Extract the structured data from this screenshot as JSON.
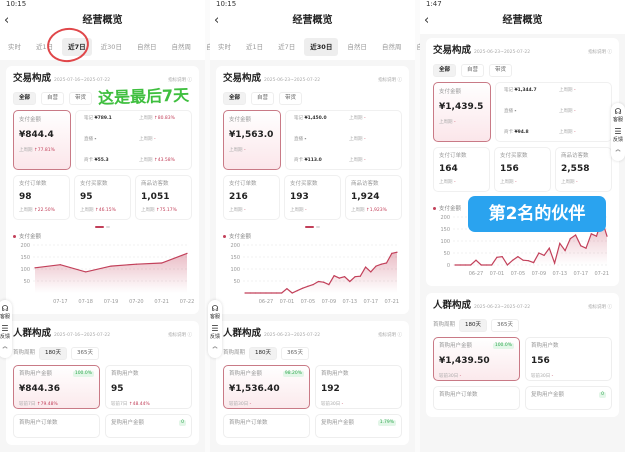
{
  "panels": [
    {
      "status_time": "10:15",
      "title": "经营概览",
      "tabs": [
        "实时",
        "近1日",
        "近7日",
        "近30日",
        "自然日",
        "自然周",
        "自然"
      ],
      "active_tab": 2,
      "trade": {
        "title": "交易构成",
        "date": "2025-07-16~2025-07-22",
        "help": "指标说明 ⓘ",
        "segments": [
          "全部",
          "自营",
          "带货"
        ],
        "pay": {
          "label": "支付金额",
          "value": "¥844.4",
          "cmp_label": "上周期",
          "cmp": "↑77.81%"
        },
        "details": [
          {
            "label": "笔记",
            "value": "¥789.1",
            "cmp_label": "上周期",
            "cmp": "↑80.83%"
          },
          {
            "label": "直播",
            "value": "-",
            "cmp_label": "上周期",
            "cmp": "-"
          },
          {
            "label": "商卡",
            "value": "¥55.3",
            "cmp_label": "上周期",
            "cmp": "↑43.58%"
          }
        ],
        "stats": [
          {
            "label": "支付订单数",
            "value": "98",
            "cmp_label": "上周期",
            "cmp": "↑22.50%"
          },
          {
            "label": "支付买家数",
            "value": "95",
            "cmp_label": "上周期",
            "cmp": "↑46.15%"
          },
          {
            "label": "商品访客数",
            "value": "1,051",
            "cmp_label": "上周期",
            "cmp": "↑75.17%"
          }
        ]
      },
      "chart_data": {
        "type": "area",
        "series": [
          {
            "name": "支付金额",
            "values": [
              105,
              118,
              88,
              112,
              120,
              125,
              165
            ]
          }
        ],
        "x": [
          "07-16",
          "07-17",
          "07-18",
          "07-19",
          "07-20",
          "07-21",
          "07-22"
        ],
        "xticks": [
          "07-17",
          "07-18",
          "07-19",
          "07-20",
          "07-21",
          "07-22"
        ],
        "yticks": [
          50,
          100,
          150,
          200
        ],
        "ylim": [
          0,
          200
        ]
      },
      "crowd": {
        "title": "人群构成",
        "date": "2025-07-16~2025-07-22",
        "help": "指标说明 ⓘ",
        "period_label": "首购周期",
        "periods": [
          "180天",
          "365天"
        ],
        "boxes": [
          {
            "label": "首购用户金额",
            "value": "¥844.36",
            "badge": "100.0%",
            "cmp_label": "较前7日",
            "cmp": "↑79.48%"
          },
          {
            "label": "首购用户数",
            "value": "95",
            "cmp_label": "较前7日",
            "cmp": "↑48.44%"
          }
        ],
        "next": [
          {
            "label": "首购用户订单数"
          },
          {
            "label": "复购用户金额",
            "badge": "0"
          }
        ]
      },
      "side": {
        "service": "客服",
        "feedback": "反馈"
      }
    },
    {
      "status_time": "10:15",
      "title": "经营概览",
      "tabs": [
        "实时",
        "近1日",
        "近7日",
        "近30日",
        "自然日",
        "自然周",
        "自然"
      ],
      "active_tab": 3,
      "trade": {
        "title": "交易构成",
        "date": "2025-06-23~2025-07-22",
        "help": "指标说明 ⓘ",
        "segments": [
          "全部",
          "自营",
          "带货"
        ],
        "pay": {
          "label": "支付金额",
          "value": "¥1,563.0",
          "cmp_label": "上周期",
          "cmp": "-"
        },
        "details": [
          {
            "label": "笔记",
            "value": "¥1,450.0",
            "cmp_label": "上周期",
            "cmp": "-"
          },
          {
            "label": "直播",
            "value": "-",
            "cmp_label": "上周期",
            "cmp": "-"
          },
          {
            "label": "商卡",
            "value": "¥113.0",
            "cmp_label": "上周期",
            "cmp": "-"
          }
        ],
        "stats": [
          {
            "label": "支付订单数",
            "value": "216",
            "cmp_label": "上周期",
            "cmp": "-"
          },
          {
            "label": "支付买家数",
            "value": "193",
            "cmp_label": "上周期",
            "cmp": "-"
          },
          {
            "label": "商品访客数",
            "value": "1,924",
            "cmp_label": "上周期",
            "cmp": "↑1,923%"
          }
        ]
      },
      "chart_data": {
        "type": "area",
        "series": [
          {
            "name": "支付金额",
            "values": [
              0,
              0,
              0,
              0,
              0,
              0,
              0,
              0,
              18,
              0,
              10,
              20,
              28,
              35,
              48,
              45,
              35,
              72,
              62,
              68,
              48,
              68,
              70,
              108,
              88,
              112,
              120,
              125,
              165,
              170
            ]
          }
        ],
        "x_start": "06-23",
        "x_end": "07-22",
        "xticks": [
          "06-27",
          "07-01",
          "07-05",
          "07-09",
          "07-13",
          "07-17",
          "07-21"
        ],
        "yticks": [
          50,
          100,
          150,
          200
        ],
        "ylim": [
          0,
          200
        ]
      },
      "crowd": {
        "title": "人群构成",
        "date": "2025-06-23~2025-07-22",
        "help": "指标说明 ⓘ",
        "period_label": "首购周期",
        "periods": [
          "180天",
          "365天"
        ],
        "boxes": [
          {
            "label": "首购用户金额",
            "value": "¥1,536.40",
            "badge": "98.20%",
            "cmp_label": "较前30日",
            "cmp": "-"
          },
          {
            "label": "首购用户数",
            "value": "192",
            "cmp_label": "较前30日",
            "cmp": "-"
          }
        ],
        "next": [
          {
            "label": "首购用户订单数"
          },
          {
            "label": "复购用户金额",
            "badge": "1.79%"
          }
        ]
      },
      "side": {
        "service": "客服",
        "feedback": "反馈"
      }
    },
    {
      "status_time": "1:47",
      "title": "经营概览",
      "trade": {
        "title": "交易构成",
        "date": "2025-06-23~2025-07-22",
        "help": "指标说明 ⓘ",
        "segments": [
          "全部",
          "自营",
          "带货"
        ],
        "pay": {
          "label": "支付金额",
          "value": "¥1,439.5",
          "cmp_label": "上周期",
          "cmp": "-"
        },
        "details": [
          {
            "label": "笔记",
            "value": "¥1,344.7",
            "cmp_label": "上周期",
            "cmp": "-"
          },
          {
            "label": "直播",
            "value": "-",
            "cmp_label": "上周期",
            "cmp": "-"
          },
          {
            "label": "商卡",
            "value": "¥94.8",
            "cmp_label": "上周期",
            "cmp": "-"
          }
        ],
        "stats": [
          {
            "label": "支付订单数",
            "value": "164",
            "cmp_label": "上周期",
            "cmp": "-"
          },
          {
            "label": "支付买家数",
            "value": "156",
            "cmp_label": "上周期",
            "cmp": "-"
          },
          {
            "label": "商品访客数",
            "value": "2,558",
            "cmp_label": "上周期",
            "cmp": "-"
          }
        ]
      },
      "chart_data": {
        "type": "area",
        "series": [
          {
            "name": "支付金额",
            "values": [
              0,
              0,
              0,
              0,
              20,
              0,
              0,
              0,
              32,
              35,
              0,
              20,
              35,
              20,
              18,
              10,
              50,
              40,
              70,
              8,
              90,
              60,
              110,
              125,
              80,
              70,
              130,
              120,
              190,
              120
            ]
          }
        ],
        "x_start": "06-23",
        "x_end": "07-22",
        "xticks": [
          "06-27",
          "07-01",
          "07-05",
          "07-09",
          "07-13",
          "07-17",
          "07-21"
        ],
        "yticks": [
          0,
          50,
          100,
          150,
          200
        ],
        "ylim": [
          0,
          200
        ]
      },
      "crowd": {
        "title": "人群构成",
        "date": "2025-06-23~2025-07-22",
        "help": "指标说明 ⓘ",
        "period_label": "首购周期",
        "periods": [
          "180天",
          "365天"
        ],
        "boxes": [
          {
            "label": "首购用户金额",
            "value": "¥1,439.50",
            "badge": "100.0%",
            "cmp_label": "较前30日",
            "cmp": "-"
          },
          {
            "label": "首购用户数",
            "value": "156",
            "cmp_label": "较前30日",
            "cmp": "-"
          }
        ],
        "next": [
          {
            "label": "首购用户订单数"
          },
          {
            "label": "复购用户金额",
            "badge": "0"
          }
        ]
      },
      "side": {
        "service": "客服",
        "feedback": "反馈"
      }
    }
  ],
  "annotations": {
    "green_text": "这是最后7天",
    "blue_text": "第2名的伙伴"
  },
  "colors": {
    "accent": "#c2405a",
    "green_note": "#3fbf3f",
    "blue_note": "#2aa3ef",
    "circle": "#e0474a"
  }
}
